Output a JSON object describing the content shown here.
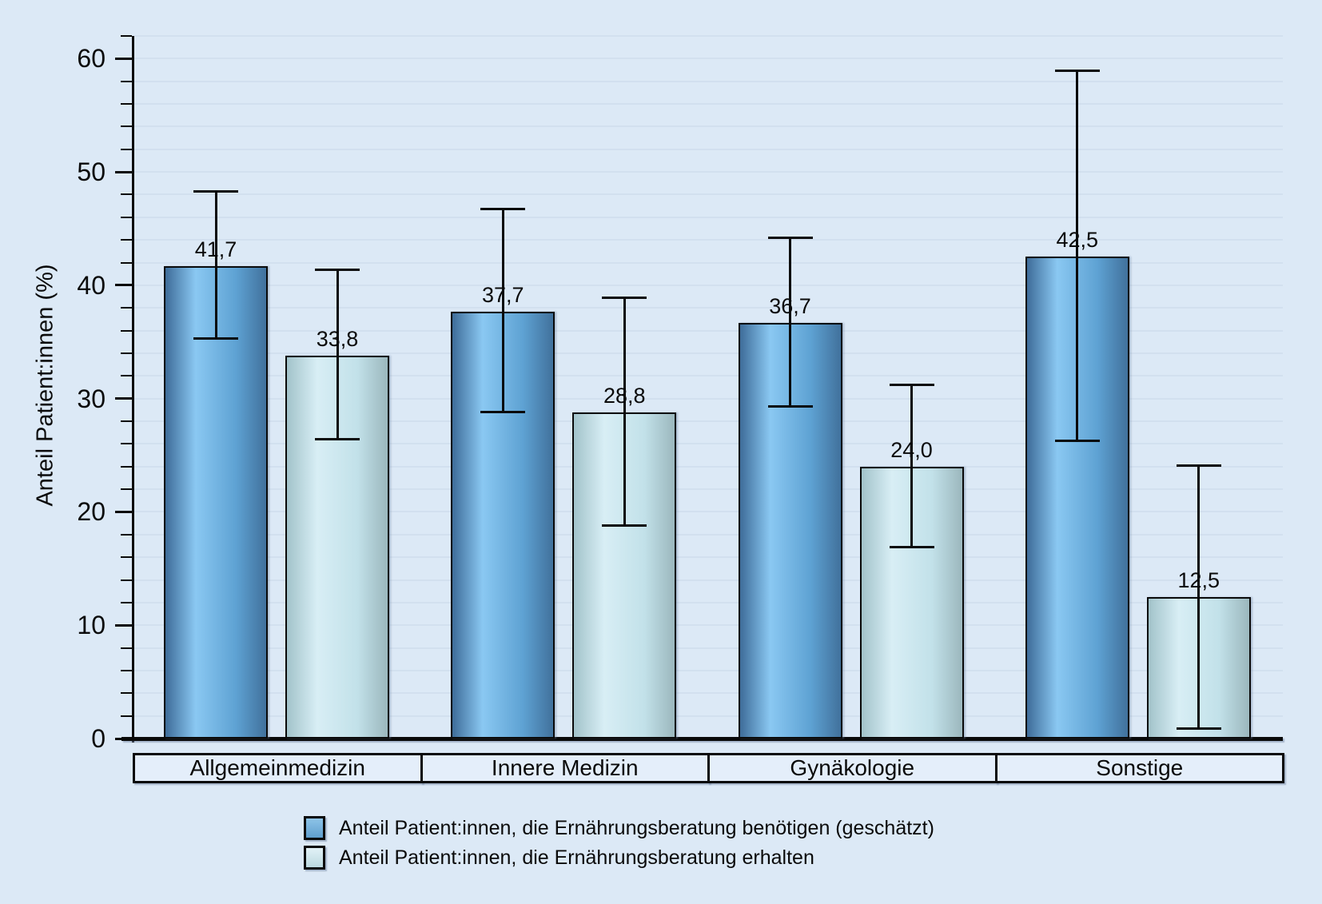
{
  "chart_data": {
    "type": "bar",
    "title": "",
    "ylabel": "Anteil Patient:innen (%)",
    "xlabel": "",
    "ylim": [
      0,
      62
    ],
    "yticks": [
      0,
      10,
      20,
      30,
      40,
      50,
      60
    ],
    "ytick_labels": [
      "0",
      "10",
      "20",
      "30",
      "40",
      "50",
      "60"
    ],
    "minor_tick_step": 2,
    "grid": "horizontal, every 2 units",
    "legend_position": "bottom",
    "categories": [
      "Allgemeinmedizin",
      "Innere Medizin",
      "Gynäkologie",
      "Sonstige"
    ],
    "series": [
      {
        "name": "Anteil Patient:innen, die Ernährungsberatung benötigen (geschätzt)",
        "values": [
          41.7,
          37.7,
          36.7,
          42.5
        ],
        "value_labels": [
          "41,7",
          "37,7",
          "36,7",
          "42,5"
        ],
        "err_low": [
          35.3,
          28.8,
          29.3,
          26.3
        ],
        "err_high": [
          48.3,
          46.7,
          44.2,
          58.9
        ]
      },
      {
        "name": "Anteil Patient:innen, die Ernährungsberatung erhalten",
        "values": [
          33.8,
          28.8,
          24.0,
          12.5
        ],
        "value_labels": [
          "33,8",
          "28,8",
          "24,0",
          "12,5"
        ],
        "err_low": [
          26.4,
          18.8,
          16.9,
          0.9
        ],
        "err_high": [
          41.4,
          38.9,
          31.2,
          24.1
        ]
      }
    ]
  },
  "colors": {
    "background": "#dce9f6",
    "gridline": "#cfdcec",
    "axis": "#0a0a0a",
    "bar_border": "#0a0a0a",
    "series1_gradient": [
      "#3e6c99",
      "#8ac8f2",
      "#5ea2d3",
      "#41719c"
    ],
    "series2_gradient": [
      "#a2c3ca",
      "#d8eef5",
      "#c2e1e9",
      "#9bb7bd"
    ],
    "legend_swatch1": [
      "#8ec4e8",
      "#5f9fce"
    ],
    "legend_swatch2": [
      "#e2f2f7",
      "#bcd9e0"
    ]
  }
}
